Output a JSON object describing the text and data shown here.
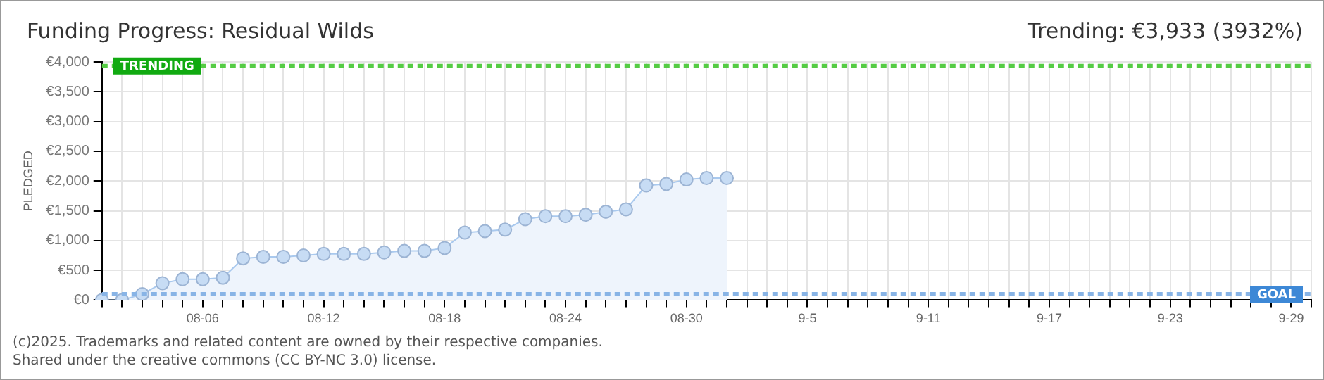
{
  "chart_data": {
    "type": "area",
    "title": "Funding Progress: Residual Wilds",
    "subtitle": "Trending: €3,933 (3932%)",
    "ylabel": "PLEDGED",
    "categories": [
      null,
      null,
      null,
      null,
      null,
      "08-06",
      null,
      null,
      null,
      null,
      null,
      "08-12",
      null,
      null,
      null,
      null,
      null,
      "08-18",
      null,
      null,
      null,
      null,
      null,
      "08-24",
      null,
      null,
      null,
      null,
      null,
      "08-30",
      null,
      null,
      null,
      null,
      null,
      "9-5",
      null,
      null,
      null,
      null,
      null,
      "9-11",
      null,
      null,
      null,
      null,
      null,
      "9-17",
      null,
      null,
      null,
      null,
      null,
      "9-23",
      null,
      null,
      null,
      null,
      null,
      "9-29",
      null
    ],
    "series": [
      {
        "color": "#a9c9ee",
        "values": [
          0,
          0,
          100,
          283,
          350,
          350,
          375,
          700,
          725,
          725,
          750,
          775,
          775,
          775,
          800,
          825,
          825,
          875,
          1133,
          1158,
          1183,
          1358,
          1408,
          1408,
          1433,
          1483,
          1525,
          1925,
          1950,
          2025,
          2050,
          2050,
          null,
          null,
          null,
          null,
          null,
          null,
          null,
          null,
          null,
          null,
          null,
          null,
          null,
          null,
          null,
          null,
          null,
          null,
          null,
          null,
          null,
          null,
          null,
          null,
          null,
          null,
          null,
          null,
          null
        ]
      }
    ],
    "ylim": [
      0,
      4000
    ],
    "yticks": [
      {
        "value": 0,
        "label": "€0"
      },
      {
        "value": 500,
        "label": "€500"
      },
      {
        "value": 1000,
        "label": "€1,000"
      },
      {
        "value": 1500,
        "label": "€1,500"
      },
      {
        "value": 2000,
        "label": "€2,000"
      },
      {
        "value": 2500,
        "label": "€2,500"
      },
      {
        "value": 3000,
        "label": "€3,000"
      },
      {
        "value": 3500,
        "label": "€3,500"
      },
      {
        "value": 4000,
        "label": "€4,000"
      }
    ],
    "ref_lines": [
      {
        "axis": "y",
        "value": 3933,
        "label": "TRENDING",
        "color": "#55cc44",
        "line_style": "dashed"
      },
      {
        "axis": "y",
        "value": 100,
        "label": "GOAL",
        "color": "#88b4e6",
        "line_style": "dashed"
      }
    ],
    "grid": true,
    "legend": false,
    "marker": "circle",
    "annotations": [
      "(c)2025. Trademarks and related content are owned by their respective companies.",
      "Shared under the creative commons (CC BY-NC 3.0) license."
    ]
  }
}
